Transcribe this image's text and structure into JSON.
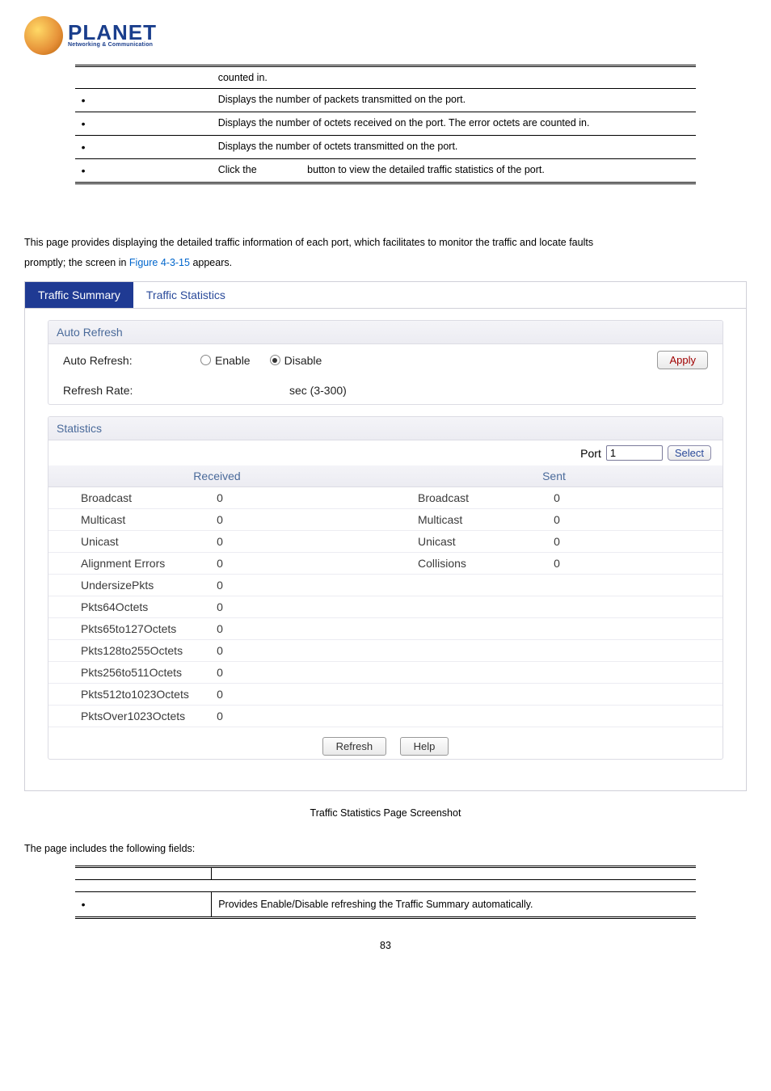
{
  "logo": {
    "main": "PLANET",
    "sub": "Networking & Communication"
  },
  "top_table": {
    "rows": [
      {
        "bullet": false,
        "b": "",
        "text": "counted in."
      },
      {
        "bullet": true,
        "b": "",
        "text": "Displays the number of packets transmitted on the port."
      },
      {
        "bullet": true,
        "b": "",
        "text": "Displays the number of octets received on the port. The error octets are counted in."
      },
      {
        "bullet": true,
        "b": "",
        "text": "Displays the number of octets transmitted on the port."
      },
      {
        "bullet": true,
        "b": "",
        "text_pre": "Click the",
        "text_post": "button to view the detailed traffic statistics of the port."
      }
    ]
  },
  "intro": {
    "line1": "This page provides displaying the detailed traffic information of each port, which facilitates to monitor the traffic and locate faults",
    "line2a": "promptly; the screen in ",
    "link": "Figure 4-3-15",
    "line2b": " appears."
  },
  "tabs": {
    "t1": "Traffic Summary",
    "t2": "Traffic Statistics"
  },
  "auto_refresh": {
    "header": "Auto Refresh",
    "label": "Auto Refresh:",
    "enable": "Enable",
    "disable": "Disable",
    "apply": "Apply",
    "rate_label": "Refresh Rate:",
    "rate_suffix": "sec (3-300)"
  },
  "statistics": {
    "header": "Statistics",
    "port_label": "Port",
    "port_value": "1",
    "select": "Select",
    "col_received": "Received",
    "col_sent": "Sent",
    "rows": [
      {
        "l": "Broadcast",
        "v": "0",
        "l2": "Broadcast",
        "v2": "0"
      },
      {
        "l": "Multicast",
        "v": "0",
        "l2": "Multicast",
        "v2": "0"
      },
      {
        "l": "Unicast",
        "v": "0",
        "l2": "Unicast",
        "v2": "0"
      },
      {
        "l": "Alignment Errors",
        "v": "0",
        "l2": "Collisions",
        "v2": "0"
      },
      {
        "l": "UndersizePkts",
        "v": "0",
        "l2": "",
        "v2": ""
      },
      {
        "l": "Pkts64Octets",
        "v": "0",
        "l2": "",
        "v2": ""
      },
      {
        "l": "Pkts65to127Octets",
        "v": "0",
        "l2": "",
        "v2": ""
      },
      {
        "l": "Pkts128to255Octets",
        "v": "0",
        "l2": "",
        "v2": ""
      },
      {
        "l": "Pkts256to511Octets",
        "v": "0",
        "l2": "",
        "v2": ""
      },
      {
        "l": "Pkts512to1023Octets",
        "v": "0",
        "l2": "",
        "v2": ""
      },
      {
        "l": "PktsOver1023Octets",
        "v": "0",
        "l2": "",
        "v2": ""
      }
    ],
    "refresh": "Refresh",
    "help": "Help"
  },
  "caption": "Traffic Statistics Page Screenshot",
  "fields_intro": "The page includes the following fields:",
  "def_row": {
    "left": "",
    "right": "Provides Enable/Disable refreshing the Traffic Summary automatically."
  },
  "page_num": "83"
}
